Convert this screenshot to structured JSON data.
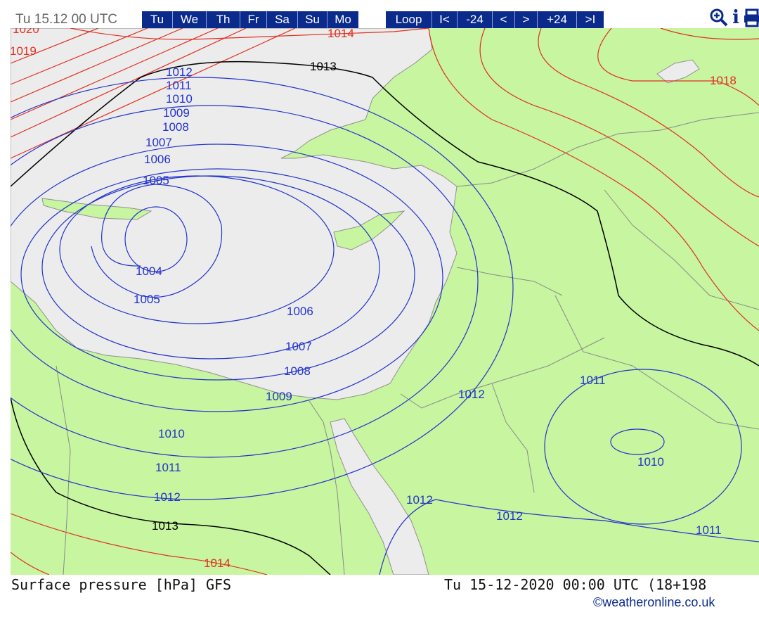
{
  "header": {
    "timestamp": "Tu 15.12 00 UTC",
    "days": [
      "Tu",
      "We",
      "Th",
      "Fr",
      "Sa",
      "Su",
      "Mo"
    ],
    "controls": [
      "Loop",
      "I<",
      "-24",
      "<",
      ">",
      "+24",
      ">I"
    ]
  },
  "tools": {
    "zoom_icon": "zoom-in-icon",
    "info_icon": "info-icon",
    "print_icon": "print-icon",
    "info_glyph": "i"
  },
  "colors": {
    "land": "#c8f5a0",
    "sea": "#ececec",
    "isobar_low": "#2233cc",
    "isobar_high": "#e03020",
    "isobar_1013": "#000000",
    "border": "#8a8a8a",
    "button_bg": "#0a2a8c"
  },
  "isobar_labels": {
    "top": [
      "1020",
      "1019",
      "1014",
      "1013",
      "1012",
      "1011",
      "1010",
      "1009",
      "1008",
      "1007",
      "1006",
      "1005",
      "1018"
    ],
    "low": [
      "1004",
      "1005",
      "1006",
      "1007",
      "1008",
      "1009",
      "1010",
      "1011",
      "1012",
      "1013",
      "1014"
    ],
    "east": [
      "1012",
      "1011",
      "1010",
      "1012",
      "1012",
      "1011"
    ]
  },
  "footer": {
    "title": "Surface pressure [hPa] GFS",
    "valid_time": "Tu 15-12-2020 00:00 UTC (18+198",
    "credit": "©weatheronline.co.uk"
  }
}
